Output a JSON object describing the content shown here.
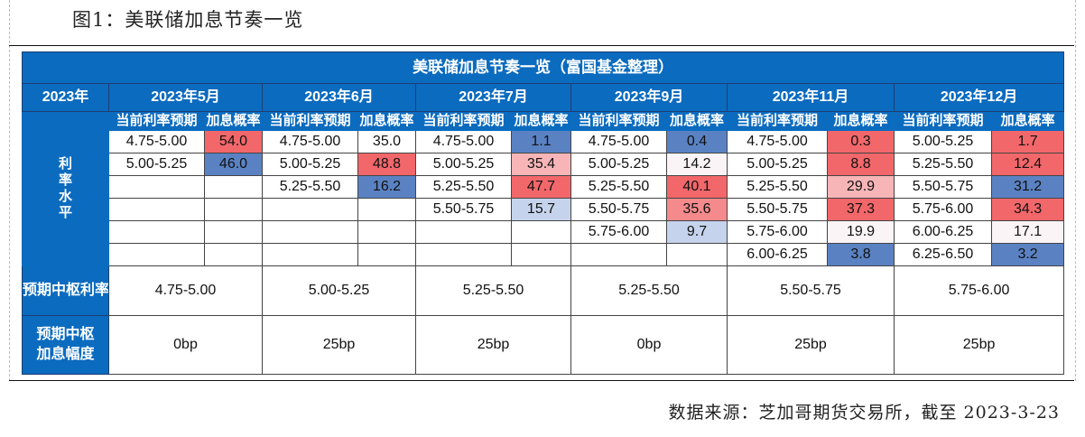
{
  "figure_title": "图1：美联储加息节奏一览",
  "table": {
    "title": "美联储加息节奏一览（富国基金整理）",
    "corner_label": "2023年",
    "side_label": "利\n率\n水\n平",
    "rate_header": "当前利率预期",
    "prob_header": "加息概率",
    "center_label": "预期中枢利率",
    "amount_label_1": "预期中枢",
    "amount_label_2": "加息幅度",
    "months": [
      {
        "label": "2023年5月",
        "center": "4.75-5.00",
        "amount": "0bp",
        "rows": [
          {
            "rate": "4.75-5.00",
            "prob": "54.0",
            "color": "red"
          },
          {
            "rate": "5.00-5.25",
            "prob": "46.0",
            "color": "blue"
          }
        ]
      },
      {
        "label": "2023年6月",
        "center": "5.00-5.25",
        "amount": "25bp",
        "rows": [
          {
            "rate": "4.75-5.00",
            "prob": "35.0",
            "color": "none"
          },
          {
            "rate": "5.00-5.25",
            "prob": "48.8",
            "color": "red"
          },
          {
            "rate": "5.25-5.50",
            "prob": "16.2",
            "color": "blue"
          }
        ]
      },
      {
        "label": "2023年7月",
        "center": "5.25-5.50",
        "amount": "25bp",
        "rows": [
          {
            "rate": "4.75-5.00",
            "prob": "1.1",
            "color": "blue"
          },
          {
            "rate": "5.00-5.25",
            "prob": "35.4",
            "color": "light-red"
          },
          {
            "rate": "5.25-5.50",
            "prob": "47.7",
            "color": "red"
          },
          {
            "rate": "5.50-5.75",
            "prob": "15.7",
            "color": "light-blue"
          }
        ]
      },
      {
        "label": "2023年9月",
        "center": "5.25-5.50",
        "amount": "0bp",
        "rows": [
          {
            "rate": "4.75-5.00",
            "prob": "0.4",
            "color": "blue"
          },
          {
            "rate": "5.00-5.25",
            "prob": "14.2",
            "color": "pale"
          },
          {
            "rate": "5.25-5.50",
            "prob": "40.1",
            "color": "red"
          },
          {
            "rate": "5.50-5.75",
            "prob": "35.6",
            "color": "medium-red"
          },
          {
            "rate": "5.75-6.00",
            "prob": "9.7",
            "color": "light-blue"
          }
        ]
      },
      {
        "label": "2023年11月",
        "center": "5.50-5.75",
        "amount": "25bp",
        "rows": [
          {
            "rate": "4.75-5.00",
            "prob": "0.3",
            "color": "red"
          },
          {
            "rate": "5.00-5.25",
            "prob": "8.8",
            "color": "red"
          },
          {
            "rate": "5.25-5.50",
            "prob": "29.9",
            "color": "light-red"
          },
          {
            "rate": "5.50-5.75",
            "prob": "37.3",
            "color": "red"
          },
          {
            "rate": "5.75-6.00",
            "prob": "19.9",
            "color": "pale"
          },
          {
            "rate": "6.00-6.25",
            "prob": "3.8",
            "color": "blue"
          }
        ]
      },
      {
        "label": "2023年12月",
        "center": "5.75-6.00",
        "amount": "25bp",
        "rows": [
          {
            "rate": "5.00-5.25",
            "prob": "1.7",
            "color": "red"
          },
          {
            "rate": "5.25-5.50",
            "prob": "12.4",
            "color": "red"
          },
          {
            "rate": "5.50-5.75",
            "prob": "31.2",
            "color": "blue"
          },
          {
            "rate": "5.75-6.00",
            "prob": "34.3",
            "color": "red"
          },
          {
            "rate": "6.00-6.25",
            "prob": "17.1",
            "color": "pale"
          },
          {
            "rate": "6.25-6.50",
            "prob": "3.2",
            "color": "blue"
          }
        ]
      }
    ]
  },
  "colors": {
    "header": "#0b6bbf",
    "red": "#f2676a",
    "medium-red": "#f48a8c",
    "light-red": "#f7b5b7",
    "blue": "#5a82c3",
    "light-blue": "#c6d3ec",
    "pale": "#fbf4f6"
  },
  "source": "数据来源：芝加哥期货交易所，截至 2023-3-23"
}
